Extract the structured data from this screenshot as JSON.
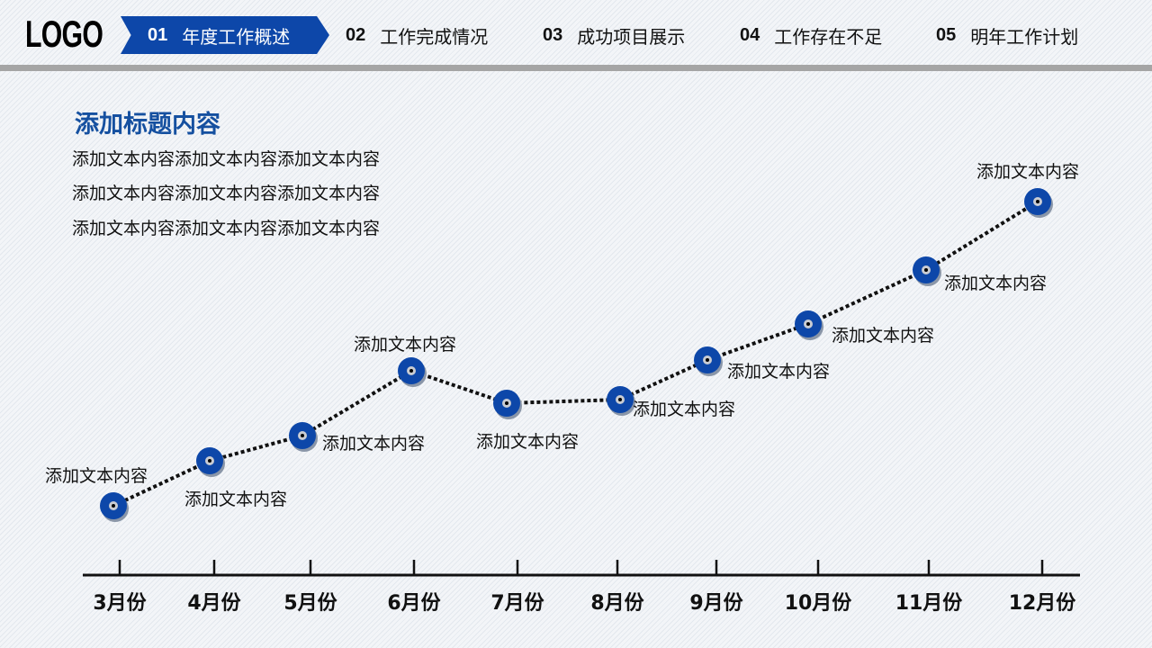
{
  "header": {
    "logo": "LOGO",
    "nav": [
      {
        "num": "01",
        "label": "年度工作概述",
        "active": true
      },
      {
        "num": "02",
        "label": "工作完成情况"
      },
      {
        "num": "03",
        "label": "成功项目展示"
      },
      {
        "num": "04",
        "label": "工作存在不足"
      },
      {
        "num": "05",
        "label": "明年工作计划"
      }
    ]
  },
  "main": {
    "title": "添加标题内容",
    "paragraphs": [
      "添加文本内容添加文本内容添加文本内容",
      "添加文本内容添加文本内容添加文本内容",
      "添加文本内容添加文本内容添加文本内容"
    ]
  },
  "colors": {
    "accent": "#0d47a9",
    "line": "#111111"
  },
  "chart_data": {
    "type": "line",
    "categories": [
      "3月份",
      "4月份",
      "5月份",
      "6月份",
      "7月份",
      "8月份",
      "9月份",
      "10月份",
      "11月份",
      "12月份"
    ],
    "values": [
      9.5,
      22,
      29,
      47,
      38,
      39,
      50,
      60,
      75,
      94
    ],
    "point_labels": [
      "添加文本内容",
      "添加文本内容",
      "添加文本内容",
      "添加文本内容",
      "添加文本内容",
      "添加文本内容",
      "添加文本内容",
      "添加文本内容",
      "添加文本内容",
      "添加文本内容"
    ],
    "ylim": [
      0,
      100
    ],
    "grid": false,
    "line_style": "dotted"
  }
}
